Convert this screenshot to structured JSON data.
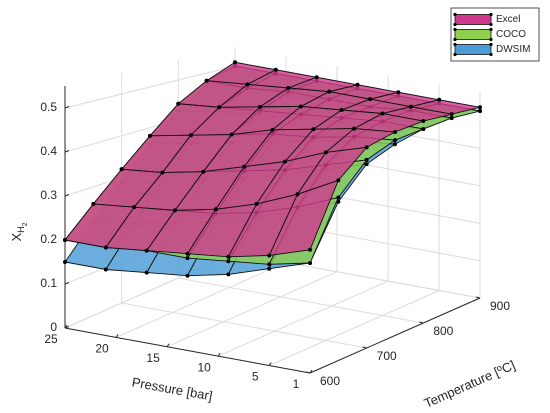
{
  "chart_data": {
    "type": "surface",
    "xlabel": "Pressure [bar]",
    "ylabel": "Temperature [ºC]",
    "zlabel": {
      "base": "X",
      "sub": "H",
      "subsub": "2"
    },
    "x": [
      25,
      21,
      17,
      13,
      9,
      5,
      1
    ],
    "y": [
      600,
      650,
      700,
      750,
      800,
      850,
      900
    ],
    "xlim": [
      1,
      25
    ],
    "xdir": "reverse",
    "ylim": [
      600,
      900
    ],
    "zlim": [
      0,
      0.55
    ],
    "xticks": [
      25,
      20,
      15,
      10,
      5,
      1
    ],
    "yticks": [
      600,
      700,
      800,
      900
    ],
    "zticks": [
      0,
      0.1,
      0.2,
      0.3,
      0.4,
      0.5
    ],
    "grid": true,
    "legend": "top-right",
    "series": [
      {
        "name": "Excel",
        "color": "#cf3a8e",
        "values": [
          [
            0.2,
            0.2,
            0.21,
            0.22,
            0.23,
            0.25,
            0.28
          ],
          [
            0.26,
            0.27,
            0.28,
            0.3,
            0.33,
            0.37,
            0.42
          ],
          [
            0.32,
            0.33,
            0.35,
            0.38,
            0.41,
            0.45,
            0.48
          ],
          [
            0.38,
            0.4,
            0.42,
            0.45,
            0.47,
            0.49,
            0.5
          ],
          [
            0.44,
            0.45,
            0.47,
            0.49,
            0.5,
            0.51,
            0.51
          ],
          [
            0.48,
            0.49,
            0.5,
            0.51,
            0.51,
            0.51,
            0.51
          ],
          [
            0.51,
            0.51,
            0.51,
            0.51,
            0.51,
            0.51,
            0.51
          ]
        ]
      },
      {
        "name": "COCO",
        "color": "#8fd14f",
        "values": [
          [
            0.2,
            0.2,
            0.21,
            0.21,
            0.22,
            0.23,
            0.25
          ],
          [
            0.26,
            0.27,
            0.28,
            0.29,
            0.31,
            0.34,
            0.38
          ],
          [
            0.32,
            0.33,
            0.35,
            0.37,
            0.39,
            0.42,
            0.45
          ],
          [
            0.38,
            0.4,
            0.42,
            0.44,
            0.45,
            0.47,
            0.48
          ],
          [
            0.44,
            0.45,
            0.46,
            0.47,
            0.48,
            0.49,
            0.49
          ],
          [
            0.48,
            0.48,
            0.49,
            0.49,
            0.49,
            0.5,
            0.5
          ],
          [
            0.5,
            0.5,
            0.5,
            0.5,
            0.5,
            0.5,
            0.5
          ]
        ]
      },
      {
        "name": "DWSIM",
        "color": "#4a9bd6",
        "values": [
          [
            0.15,
            0.15,
            0.16,
            0.17,
            0.19,
            0.22,
            0.25
          ],
          [
            0.22,
            0.23,
            0.25,
            0.27,
            0.3,
            0.33,
            0.37
          ],
          [
            0.29,
            0.31,
            0.33,
            0.35,
            0.38,
            0.41,
            0.44
          ],
          [
            0.36,
            0.38,
            0.4,
            0.42,
            0.44,
            0.46,
            0.47
          ],
          [
            0.42,
            0.44,
            0.45,
            0.46,
            0.47,
            0.48,
            0.49
          ],
          [
            0.47,
            0.48,
            0.48,
            0.49,
            0.49,
            0.49,
            0.5
          ],
          [
            0.5,
            0.5,
            0.5,
            0.5,
            0.5,
            0.5,
            0.5
          ]
        ]
      }
    ]
  }
}
